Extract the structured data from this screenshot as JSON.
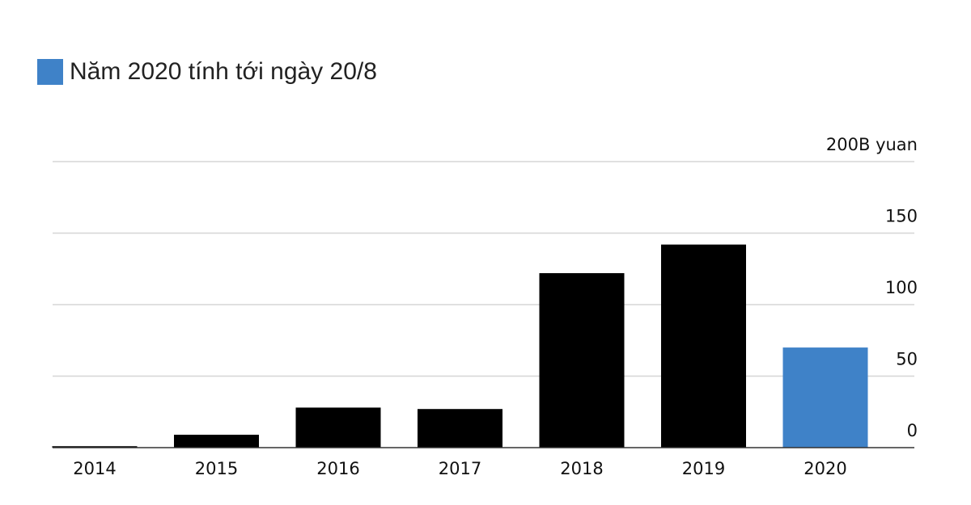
{
  "legend": {
    "label": "Năm 2020 tính tới ngày 20/8",
    "color": "#3f82c8"
  },
  "chart_data": {
    "type": "bar",
    "categories": [
      "2014",
      "2015",
      "2016",
      "2017",
      "2018",
      "2019",
      "2020"
    ],
    "values": [
      1,
      9,
      28,
      27,
      122,
      142,
      70
    ],
    "bar_colors": [
      "#000000",
      "#000000",
      "#000000",
      "#000000",
      "#000000",
      "#000000",
      "#3f82c8"
    ],
    "ylim": [
      0,
      200
    ],
    "yticks": [
      0,
      50,
      100,
      150,
      200
    ],
    "ytick_labels": [
      "0",
      "50",
      "100",
      "150",
      "200B yuan"
    ],
    "grid": true,
    "y_axis_position": "right",
    "legend_position": "top-left"
  }
}
